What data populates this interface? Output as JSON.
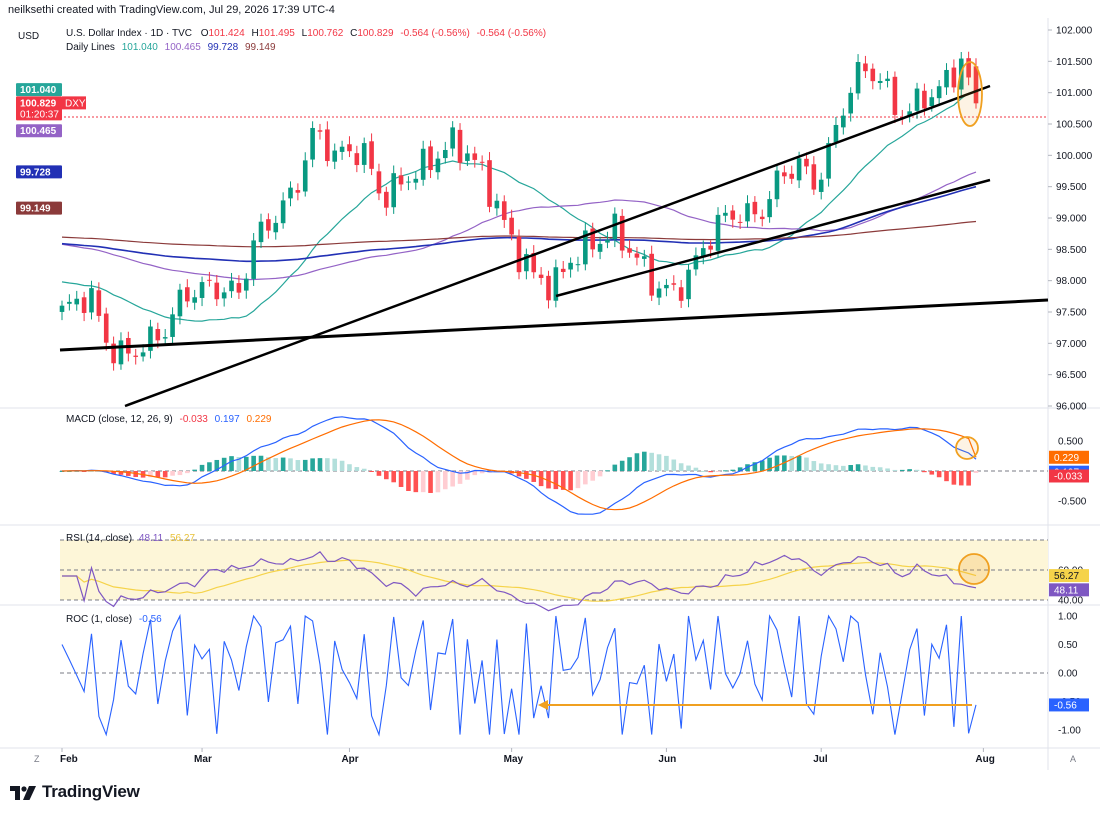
{
  "attribution": "neilksethi created with TradingView.com, Jul 29, 2026 17:39 UTC-4",
  "brand": "TradingView",
  "currency": "USD",
  "main": {
    "symbol_line": "U.S. Dollar Index · 1D · TVC",
    "ohlc": [
      {
        "label": "O",
        "value": "101.424"
      },
      {
        "label": "H",
        "value": "101.495"
      },
      {
        "label": "L",
        "value": "100.762"
      },
      {
        "label": "C",
        "value": "100.829"
      }
    ],
    "change": "-0.564 (-0.56%)",
    "change2": "-0.564 (-0.56%)",
    "ma_title": "Daily Lines",
    "ma_values": [
      "101.040",
      "100.465",
      "99.728",
      "99.149"
    ]
  },
  "price_tags": {
    "ma20": "101.040",
    "last": "100.829",
    "symbol": "DXY",
    "countdown": "01:20:37",
    "ma50": "100.465",
    "ma100": "99.728",
    "ma200": "99.149"
  },
  "macd": {
    "title": "MACD (close, 12, 26, 9)",
    "values": [
      "-0.033",
      "0.197",
      "0.229"
    ]
  },
  "rsi": {
    "title": "RSI (14, close)",
    "values": [
      "48.11",
      "56.27"
    ]
  },
  "roc": {
    "title": "ROC (1, close)",
    "values": [
      "-0.56"
    ]
  },
  "corner_left": "Z",
  "corner_right": "A",
  "colors": {
    "up": "#089981",
    "down": "#f23645",
    "ma20": "#26a69a",
    "ma50": "#9463c6",
    "ma100": "#2230b5",
    "ma200": "#8b3a3a",
    "macd": "#2962ff",
    "signal": "#ff6d00",
    "rsi": "#7e57c2",
    "rsi_ma": "#f5d34a",
    "roc": "#2962ff",
    "annotation": "#f0a020"
  },
  "chart_data": [
    {
      "type": "candlestick",
      "title": "U.S. Dollar Index · 1D · TVC",
      "x_labels": [
        "Feb",
        "Mar",
        "Apr",
        "May",
        "Jun",
        "Jul",
        "Aug"
      ],
      "y_ticks": [
        "102.000",
        "101.500",
        "101.000",
        "100.500",
        "100.000",
        "99.500",
        "99.000",
        "98.500",
        "98.000",
        "97.500",
        "97.000",
        "96.500",
        "96.000"
      ],
      "ylim": [
        96.0,
        102.0
      ],
      "series": [
        {
          "name": "Daily Lines",
          "values": [
            101.04,
            100.465,
            99.728,
            99.149
          ]
        }
      ]
    },
    {
      "type": "line",
      "title": "MACD (close, 12, 26, 9)",
      "y_ticks": [
        "0.500",
        "-0.500"
      ],
      "ylim": [
        -0.75,
        0.75
      ],
      "series": [
        {
          "name": "Histogram",
          "values": [
            -0.033
          ]
        },
        {
          "name": "MACD",
          "values": [
            0.197
          ]
        },
        {
          "name": "Signal",
          "values": [
            0.229
          ]
        }
      ]
    },
    {
      "type": "line",
      "title": "RSI (14, close)",
      "y_ticks": [
        "60.00",
        "40.00"
      ],
      "ylim": [
        30,
        80
      ],
      "series": [
        {
          "name": "RSI",
          "values": [
            48.11
          ]
        },
        {
          "name": "RSI MA",
          "values": [
            56.27
          ]
        }
      ]
    },
    {
      "type": "line",
      "title": "ROC (1, close)",
      "y_ticks": [
        "1.00",
        "0.50",
        "0.00",
        "-0.50",
        "-1.00"
      ],
      "ylim": [
        -1.1,
        1.1
      ],
      "series": [
        {
          "name": "ROC",
          "values": [
            -0.56
          ]
        }
      ]
    }
  ]
}
